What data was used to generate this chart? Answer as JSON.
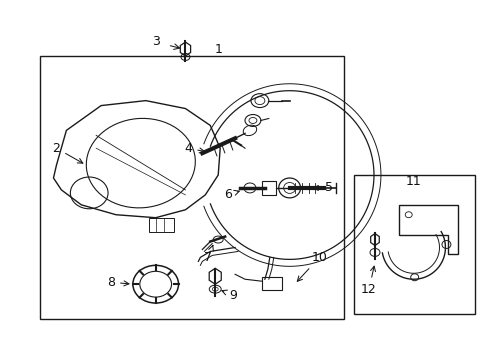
{
  "background_color": "#ffffff",
  "line_color": "#1a1a1a",
  "text_color": "#111111",
  "fig_width": 4.89,
  "fig_height": 3.6,
  "dpi": 100
}
